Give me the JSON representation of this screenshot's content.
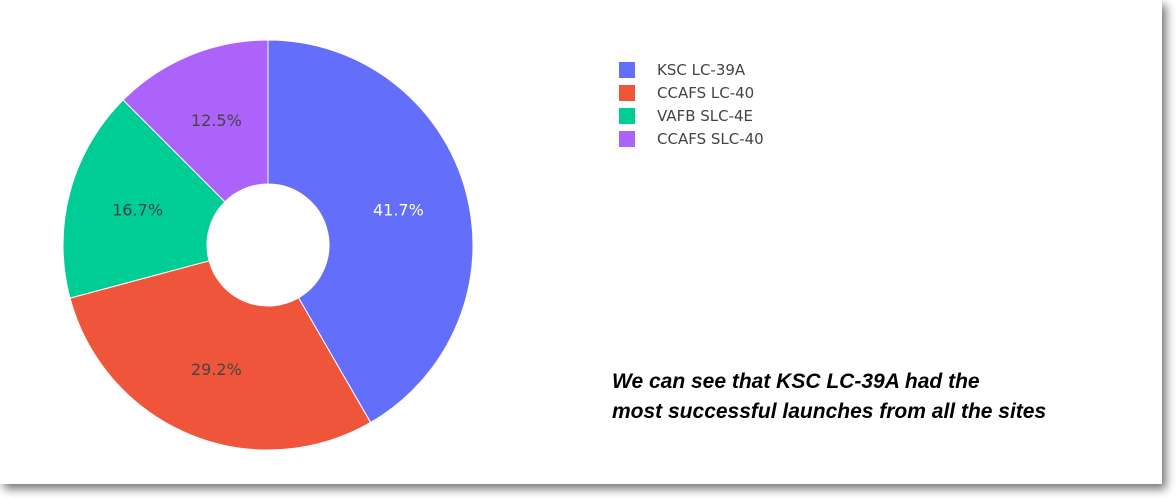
{
  "chart_data": {
    "type": "pie",
    "hole": true,
    "labels": [
      "KSC LC-39A",
      "CCAFS LC-40",
      "VAFB SLC-4E",
      "CCAFS SLC-40"
    ],
    "values": [
      41.7,
      29.2,
      16.7,
      12.5
    ],
    "text": [
      "41.7%",
      "29.2%",
      "16.7%",
      "12.5%"
    ],
    "colors": [
      "#636efa",
      "#ef553b",
      "#00cc96",
      "#ab63fa"
    ],
    "label_color_dark": "#444444",
    "label_color_light": "#ffffff",
    "sort": "descending",
    "direction": "clockwise",
    "start_angle": "top",
    "legend_position": "top-right"
  },
  "annotation": {
    "line1": "We can see that KSC LC-39A had the",
    "line2": "most successful launches from all the sites"
  }
}
